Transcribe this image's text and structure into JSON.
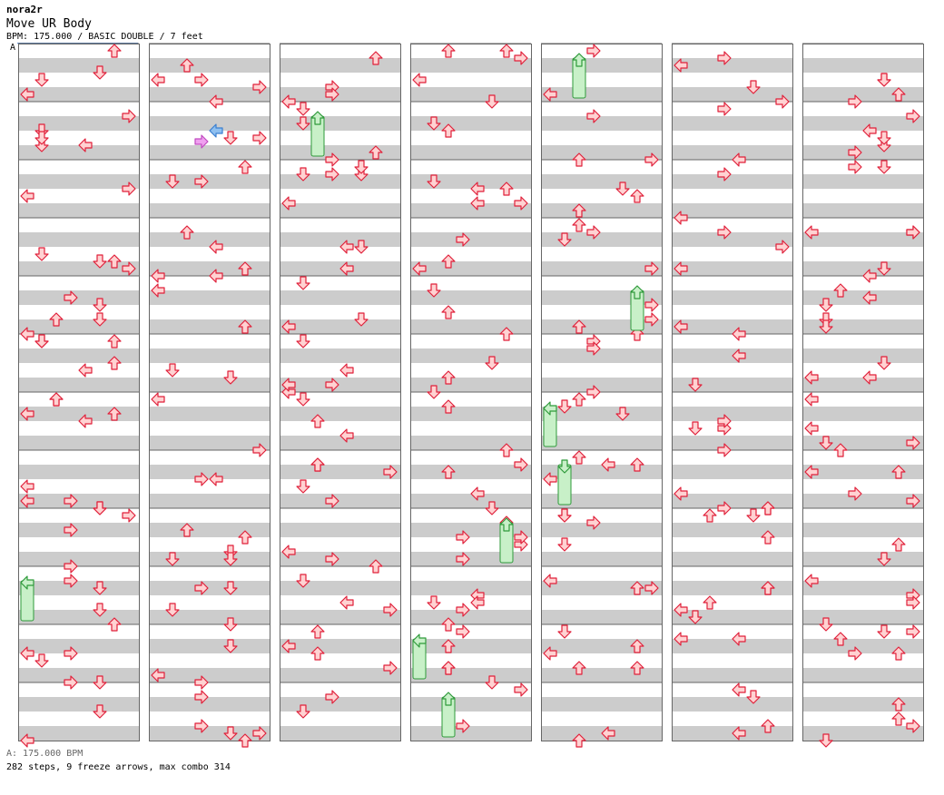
{
  "header": {
    "artist": "nora2r",
    "title": "Move UR Body",
    "info": "BPM: 175.000 / BASIC DOUBLE / 7 feet",
    "bpm_marker": "A"
  },
  "footer": {
    "bpm_note": "A: 175.000 BPM",
    "stats": "282 steps, 9 freeze arrows, max combo 314"
  },
  "chart_data": {
    "type": "step-chart",
    "columns": 7,
    "measures_per_column": 12,
    "lanes_per_side": 4,
    "panels": 8,
    "freeze_arrows": 9,
    "total_steps": 282,
    "max_combo": 314,
    "colors": {
      "arrow_fill": "#ffd2d2",
      "arrow_stroke": "#e0203a",
      "freeze_fill": "#c8f0c8",
      "freeze_stroke": "#2e9a3a",
      "special_arrow_blue": "#8fc0f0",
      "special_arrow_pink": "#f0a0f0",
      "grid_gray": "#cccccc"
    }
  }
}
